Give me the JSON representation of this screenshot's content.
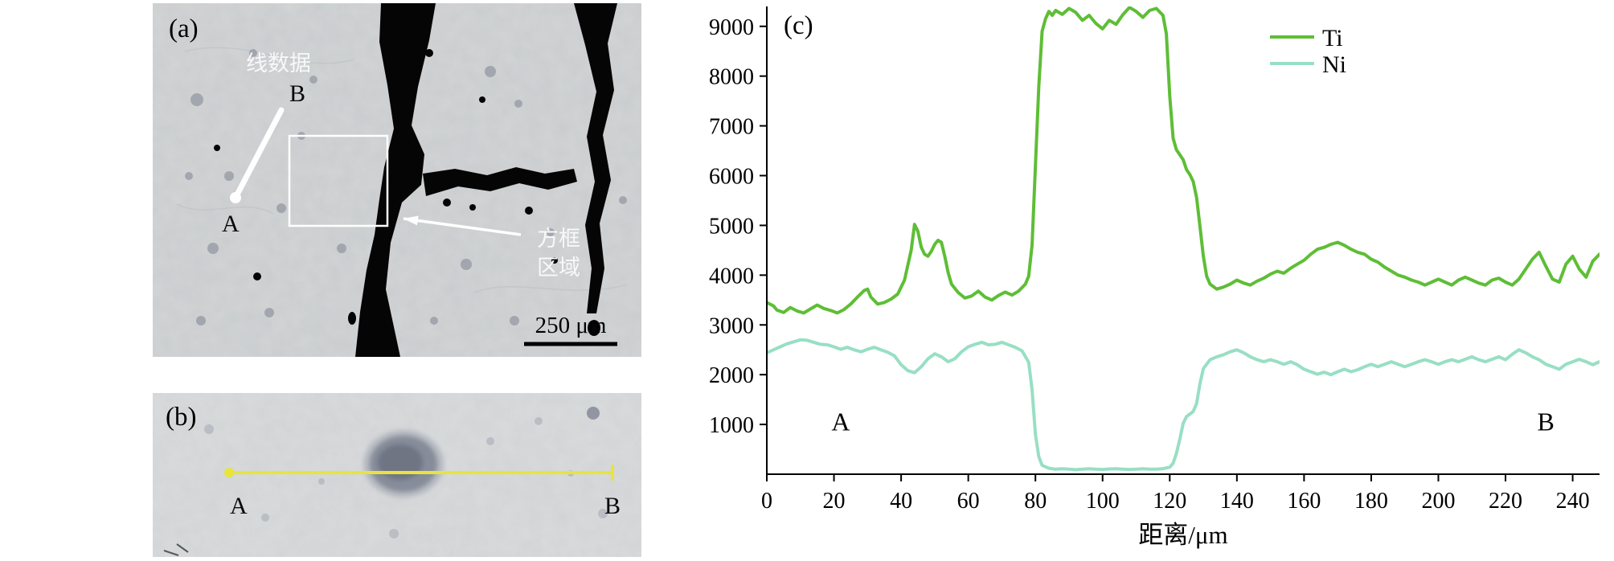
{
  "figure": {
    "panel_a": {
      "label": "(a)",
      "line_label": "线数据",
      "point_a": "A",
      "point_b": "B",
      "box_label_line1": "方框",
      "box_label_line2": "区域",
      "scale_bar_text": "250 μm"
    },
    "panel_b": {
      "label": "(b)",
      "point_a": "A",
      "point_b": "B"
    },
    "panel_c_label": "(c)"
  },
  "colors": {
    "ti_green": "#5ebe36",
    "ni_mint": "#98dfc4",
    "scan_line_yellow": "#e8e43c",
    "micrograph_gray": "#d3d5d6"
  },
  "chart_data": {
    "type": "line",
    "title": "",
    "xlabel": "距离/μm",
    "ylabel": "",
    "xlim": [
      0,
      248
    ],
    "ylim": [
      0,
      9400
    ],
    "x_ticks": [
      0,
      20,
      40,
      60,
      80,
      100,
      120,
      140,
      160,
      180,
      200,
      220,
      240
    ],
    "y_ticks": [
      1000,
      2000,
      3000,
      4000,
      5000,
      6000,
      7000,
      8000,
      9000
    ],
    "grid": false,
    "legend_position": "top-right",
    "annotations": [
      {
        "text": "A",
        "x": 22,
        "y": 880
      },
      {
        "text": "B",
        "x": 232,
        "y": 880
      }
    ],
    "series": [
      {
        "name": "Ti",
        "color": "#5ebe36",
        "points": [
          [
            0,
            3450
          ],
          [
            2,
            3380
          ],
          [
            3,
            3300
          ],
          [
            5,
            3250
          ],
          [
            7,
            3350
          ],
          [
            9,
            3280
          ],
          [
            11,
            3240
          ],
          [
            13,
            3320
          ],
          [
            15,
            3400
          ],
          [
            17,
            3330
          ],
          [
            19,
            3290
          ],
          [
            21,
            3240
          ],
          [
            23,
            3310
          ],
          [
            25,
            3420
          ],
          [
            27,
            3560
          ],
          [
            29,
            3690
          ],
          [
            30,
            3720
          ],
          [
            31,
            3560
          ],
          [
            33,
            3420
          ],
          [
            35,
            3450
          ],
          [
            37,
            3520
          ],
          [
            39,
            3620
          ],
          [
            41,
            3900
          ],
          [
            43,
            4500
          ],
          [
            44,
            5020
          ],
          [
            45,
            4880
          ],
          [
            46,
            4560
          ],
          [
            47,
            4420
          ],
          [
            48,
            4380
          ],
          [
            49,
            4480
          ],
          [
            50,
            4620
          ],
          [
            51,
            4700
          ],
          [
            52,
            4660
          ],
          [
            53,
            4380
          ],
          [
            54,
            4050
          ],
          [
            55,
            3820
          ],
          [
            57,
            3650
          ],
          [
            59,
            3540
          ],
          [
            61,
            3580
          ],
          [
            63,
            3680
          ],
          [
            65,
            3560
          ],
          [
            67,
            3500
          ],
          [
            69,
            3590
          ],
          [
            71,
            3660
          ],
          [
            73,
            3600
          ],
          [
            75,
            3680
          ],
          [
            77,
            3820
          ],
          [
            78,
            3980
          ],
          [
            79,
            4600
          ],
          [
            80,
            6200
          ],
          [
            81,
            7800
          ],
          [
            82,
            8900
          ],
          [
            83,
            9150
          ],
          [
            84,
            9300
          ],
          [
            85,
            9220
          ],
          [
            86,
            9320
          ],
          [
            88,
            9240
          ],
          [
            90,
            9360
          ],
          [
            92,
            9280
          ],
          [
            94,
            9120
          ],
          [
            96,
            9220
          ],
          [
            98,
            9060
          ],
          [
            100,
            8950
          ],
          [
            102,
            9120
          ],
          [
            104,
            9040
          ],
          [
            106,
            9230
          ],
          [
            108,
            9380
          ],
          [
            110,
            9300
          ],
          [
            112,
            9180
          ],
          [
            114,
            9320
          ],
          [
            116,
            9360
          ],
          [
            118,
            9220
          ],
          [
            119,
            8850
          ],
          [
            120,
            7600
          ],
          [
            121,
            6750
          ],
          [
            122,
            6520
          ],
          [
            123,
            6420
          ],
          [
            124,
            6320
          ],
          [
            125,
            6120
          ],
          [
            126,
            6020
          ],
          [
            127,
            5880
          ],
          [
            128,
            5560
          ],
          [
            129,
            4980
          ],
          [
            130,
            4380
          ],
          [
            131,
            3980
          ],
          [
            132,
            3820
          ],
          [
            134,
            3720
          ],
          [
            136,
            3760
          ],
          [
            138,
            3820
          ],
          [
            140,
            3900
          ],
          [
            142,
            3840
          ],
          [
            144,
            3800
          ],
          [
            146,
            3880
          ],
          [
            148,
            3940
          ],
          [
            150,
            4020
          ],
          [
            152,
            4080
          ],
          [
            154,
            4040
          ],
          [
            156,
            4140
          ],
          [
            158,
            4220
          ],
          [
            160,
            4300
          ],
          [
            162,
            4420
          ],
          [
            164,
            4520
          ],
          [
            166,
            4560
          ],
          [
            168,
            4620
          ],
          [
            170,
            4660
          ],
          [
            172,
            4600
          ],
          [
            174,
            4520
          ],
          [
            176,
            4460
          ],
          [
            178,
            4420
          ],
          [
            180,
            4320
          ],
          [
            182,
            4260
          ],
          [
            184,
            4160
          ],
          [
            186,
            4080
          ],
          [
            188,
            4000
          ],
          [
            190,
            3960
          ],
          [
            192,
            3900
          ],
          [
            194,
            3860
          ],
          [
            196,
            3800
          ],
          [
            198,
            3860
          ],
          [
            200,
            3920
          ],
          [
            202,
            3860
          ],
          [
            204,
            3800
          ],
          [
            206,
            3900
          ],
          [
            208,
            3960
          ],
          [
            210,
            3900
          ],
          [
            212,
            3840
          ],
          [
            214,
            3800
          ],
          [
            216,
            3900
          ],
          [
            218,
            3940
          ],
          [
            220,
            3860
          ],
          [
            222,
            3800
          ],
          [
            224,
            3920
          ],
          [
            226,
            4120
          ],
          [
            228,
            4320
          ],
          [
            230,
            4460
          ],
          [
            232,
            4180
          ],
          [
            234,
            3920
          ],
          [
            236,
            3860
          ],
          [
            238,
            4220
          ],
          [
            240,
            4380
          ],
          [
            242,
            4120
          ],
          [
            244,
            3960
          ],
          [
            246,
            4280
          ],
          [
            248,
            4420
          ]
        ]
      },
      {
        "name": "Ni",
        "color": "#98dfc4",
        "points": [
          [
            0,
            2440
          ],
          [
            2,
            2500
          ],
          [
            4,
            2560
          ],
          [
            6,
            2620
          ],
          [
            8,
            2660
          ],
          [
            10,
            2700
          ],
          [
            12,
            2690
          ],
          [
            14,
            2650
          ],
          [
            16,
            2610
          ],
          [
            18,
            2600
          ],
          [
            20,
            2560
          ],
          [
            22,
            2510
          ],
          [
            24,
            2550
          ],
          [
            26,
            2500
          ],
          [
            28,
            2460
          ],
          [
            30,
            2510
          ],
          [
            32,
            2550
          ],
          [
            34,
            2500
          ],
          [
            36,
            2450
          ],
          [
            38,
            2380
          ],
          [
            40,
            2200
          ],
          [
            42,
            2080
          ],
          [
            44,
            2040
          ],
          [
            46,
            2160
          ],
          [
            48,
            2320
          ],
          [
            50,
            2420
          ],
          [
            52,
            2360
          ],
          [
            54,
            2260
          ],
          [
            56,
            2320
          ],
          [
            58,
            2460
          ],
          [
            60,
            2560
          ],
          [
            62,
            2610
          ],
          [
            64,
            2650
          ],
          [
            66,
            2600
          ],
          [
            68,
            2610
          ],
          [
            70,
            2650
          ],
          [
            72,
            2600
          ],
          [
            74,
            2550
          ],
          [
            76,
            2480
          ],
          [
            78,
            2250
          ],
          [
            79,
            1700
          ],
          [
            80,
            800
          ],
          [
            81,
            350
          ],
          [
            82,
            180
          ],
          [
            84,
            120
          ],
          [
            86,
            100
          ],
          [
            88,
            110
          ],
          [
            90,
            100
          ],
          [
            92,
            90
          ],
          [
            94,
            100
          ],
          [
            96,
            110
          ],
          [
            98,
            100
          ],
          [
            100,
            95
          ],
          [
            102,
            105
          ],
          [
            104,
            110
          ],
          [
            106,
            100
          ],
          [
            108,
            95
          ],
          [
            110,
            100
          ],
          [
            112,
            108
          ],
          [
            114,
            100
          ],
          [
            116,
            102
          ],
          [
            118,
            112
          ],
          [
            120,
            140
          ],
          [
            121,
            220
          ],
          [
            122,
            420
          ],
          [
            123,
            700
          ],
          [
            124,
            1020
          ],
          [
            125,
            1160
          ],
          [
            126,
            1210
          ],
          [
            127,
            1260
          ],
          [
            128,
            1420
          ],
          [
            129,
            1820
          ],
          [
            130,
            2120
          ],
          [
            132,
            2300
          ],
          [
            134,
            2360
          ],
          [
            136,
            2400
          ],
          [
            138,
            2460
          ],
          [
            140,
            2500
          ],
          [
            142,
            2440
          ],
          [
            144,
            2360
          ],
          [
            146,
            2300
          ],
          [
            148,
            2260
          ],
          [
            150,
            2300
          ],
          [
            152,
            2260
          ],
          [
            154,
            2210
          ],
          [
            156,
            2260
          ],
          [
            158,
            2200
          ],
          [
            160,
            2110
          ],
          [
            162,
            2060
          ],
          [
            164,
            2010
          ],
          [
            166,
            2050
          ],
          [
            168,
            2000
          ],
          [
            170,
            2060
          ],
          [
            172,
            2110
          ],
          [
            174,
            2060
          ],
          [
            176,
            2100
          ],
          [
            178,
            2160
          ],
          [
            180,
            2210
          ],
          [
            182,
            2160
          ],
          [
            184,
            2210
          ],
          [
            186,
            2260
          ],
          [
            188,
            2210
          ],
          [
            190,
            2160
          ],
          [
            192,
            2210
          ],
          [
            194,
            2260
          ],
          [
            196,
            2300
          ],
          [
            198,
            2260
          ],
          [
            200,
            2210
          ],
          [
            202,
            2260
          ],
          [
            204,
            2300
          ],
          [
            206,
            2260
          ],
          [
            208,
            2310
          ],
          [
            210,
            2360
          ],
          [
            212,
            2300
          ],
          [
            214,
            2260
          ],
          [
            216,
            2310
          ],
          [
            218,
            2360
          ],
          [
            220,
            2300
          ],
          [
            222,
            2410
          ],
          [
            224,
            2500
          ],
          [
            226,
            2440
          ],
          [
            228,
            2360
          ],
          [
            230,
            2300
          ],
          [
            232,
            2210
          ],
          [
            234,
            2160
          ],
          [
            236,
            2110
          ],
          [
            238,
            2210
          ],
          [
            240,
            2260
          ],
          [
            242,
            2310
          ],
          [
            244,
            2260
          ],
          [
            246,
            2200
          ],
          [
            248,
            2260
          ]
        ]
      }
    ]
  }
}
